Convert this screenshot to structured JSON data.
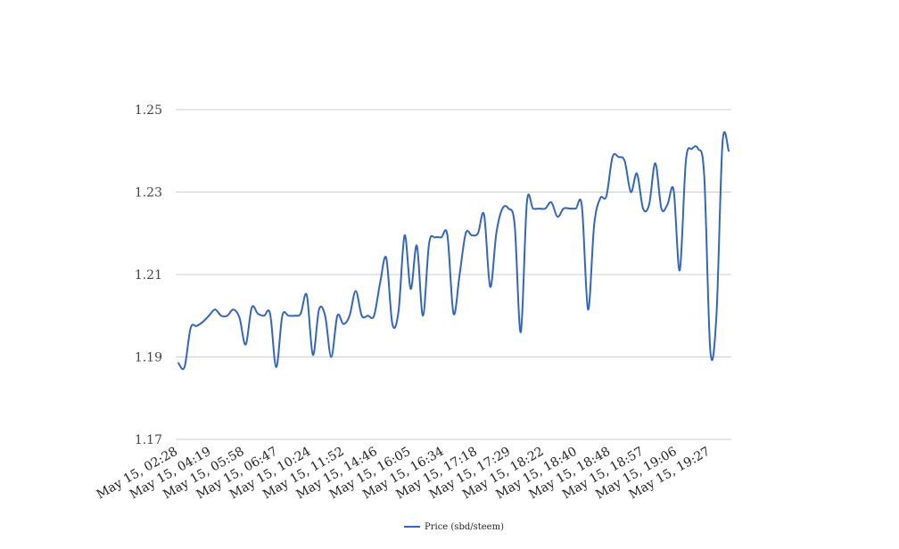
{
  "chart_data": {
    "type": "line",
    "title": "",
    "xlabel": "",
    "ylabel": "",
    "ylim": [
      1.17,
      1.25
    ],
    "y_ticks": [
      "1.25",
      "1.23",
      "1.21",
      "1.19",
      "1.17"
    ],
    "grid": "horizontal",
    "legend_position": "bottom",
    "line_color": "#3366bb",
    "x_tick_labels": [
      "May 15, 02:28",
      "May 15, 04:19",
      "May 15, 05:58",
      "May 15, 06:47",
      "May 15, 10:24",
      "May 15, 11:52",
      "May 15, 14:46",
      "May 15, 16:05",
      "May 15, 16:34",
      "May 15, 17:18",
      "May 15, 17:29",
      "May 15, 18:22",
      "May 15, 18:40",
      "May 15, 18:48",
      "May 15, 18:57",
      "May 15, 19:06",
      "May 15, 19:27"
    ],
    "series": [
      {
        "name": "Price (sbd/steem)",
        "values": [
          1.1885,
          1.1875,
          1.197,
          1.1975,
          1.1985,
          1.2,
          1.2015,
          1.2,
          1.2,
          1.2015,
          1.1995,
          1.193,
          1.202,
          1.2005,
          1.2,
          1.2005,
          1.1875,
          1.2,
          1.2,
          1.2,
          1.2005,
          1.205,
          1.1905,
          1.2015,
          1.2,
          1.19,
          1.2,
          1.198,
          1.2,
          1.206,
          1.2,
          1.2,
          1.2,
          1.208,
          1.214,
          1.198,
          1.201,
          1.2195,
          1.2065,
          1.217,
          1.2,
          1.2175,
          1.219,
          1.219,
          1.2195,
          1.2005,
          1.21,
          1.22,
          1.2195,
          1.22,
          1.2245,
          1.207,
          1.22,
          1.226,
          1.226,
          1.222,
          1.196,
          1.2275,
          1.226,
          1.226,
          1.226,
          1.2275,
          1.224,
          1.226,
          1.226,
          1.226,
          1.2265,
          1.2015,
          1.222,
          1.2285,
          1.229,
          1.2385,
          1.2385,
          1.2375,
          1.23,
          1.2345,
          1.226,
          1.227,
          1.237,
          1.226,
          1.227,
          1.2305,
          1.211,
          1.2375,
          1.2405,
          1.2405,
          1.234,
          1.1915,
          1.2,
          1.242,
          1.24
        ]
      }
    ]
  }
}
